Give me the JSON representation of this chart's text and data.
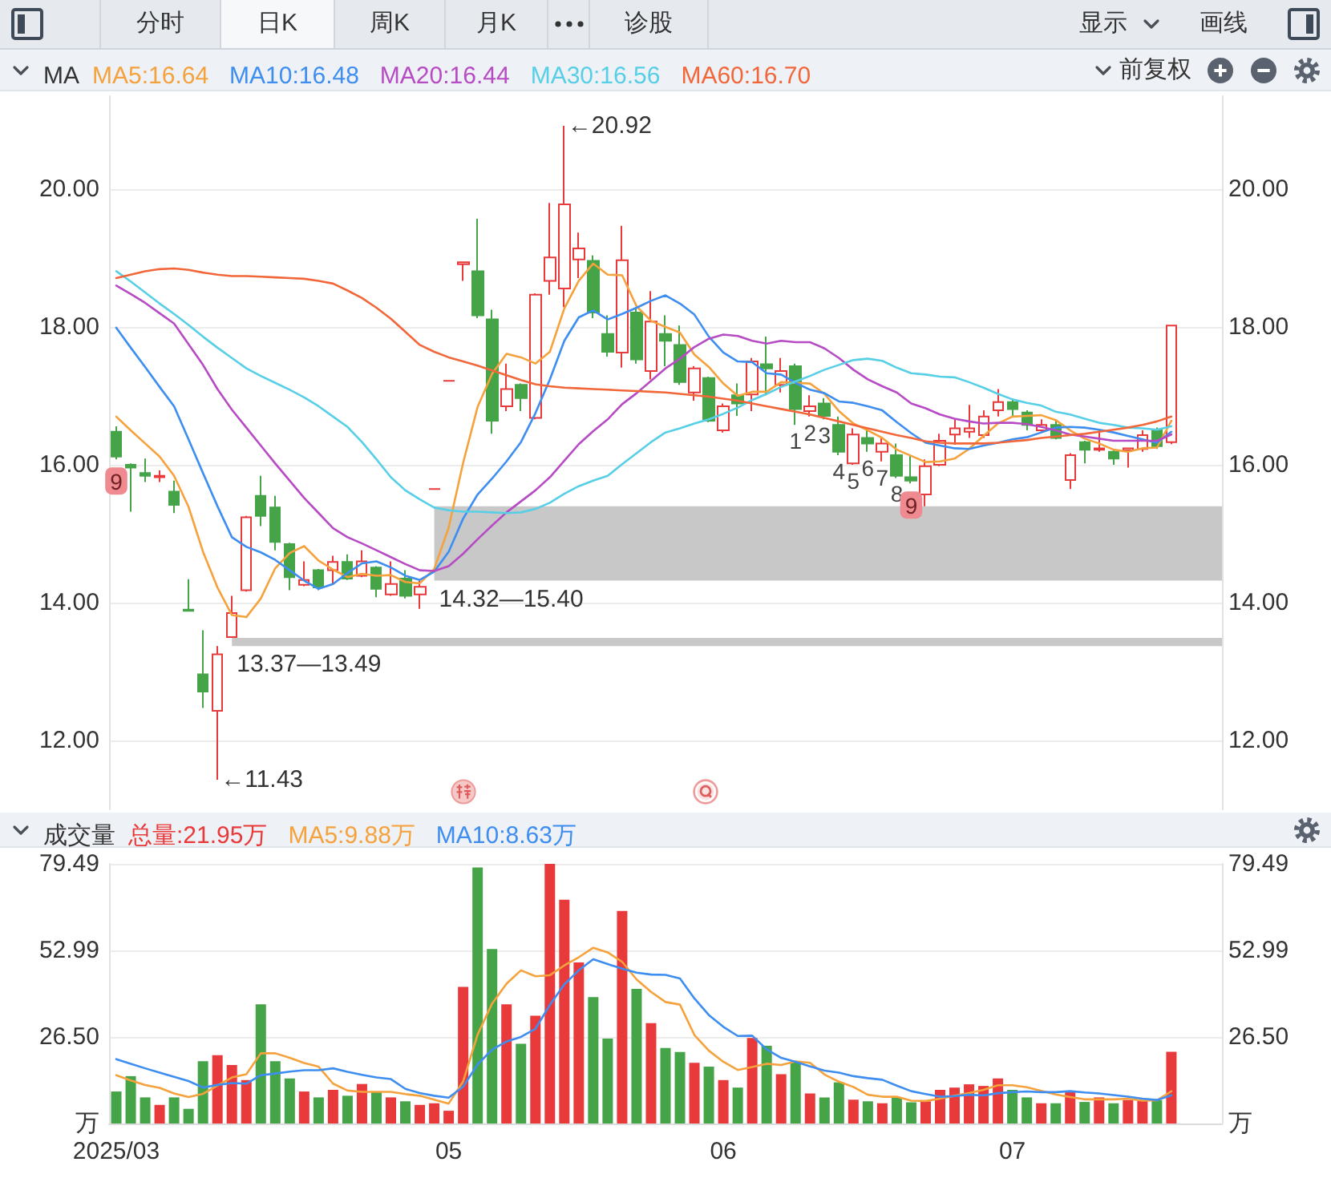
{
  "chart_data": [
    {
      "type": "other",
      "annotations": [
        "分时",
        "日K",
        "周K",
        "月K",
        "诊股",
        "显示",
        "画线"
      ]
    },
    {
      "type": "candlestick",
      "title": "MA",
      "legend": "top left",
      "grid": "y",
      "marker": "none",
      "tick_labels": "y",
      "categories": [
        "2025/03",
        null,
        null,
        null,
        null,
        null,
        null,
        null,
        null,
        null,
        null,
        null,
        null,
        null,
        null,
        null,
        null,
        null,
        null,
        null,
        null,
        null,
        null,
        "05",
        null,
        null,
        null,
        null,
        null,
        null,
        null,
        null,
        null,
        null,
        null,
        null,
        null,
        null,
        null,
        null,
        null,
        null,
        "06",
        null,
        null,
        null,
        null,
        null,
        null,
        null,
        null,
        null,
        null,
        null,
        null,
        null,
        null,
        null,
        null,
        null,
        null,
        null,
        "07",
        null,
        null,
        null,
        null,
        null,
        null,
        null,
        null,
        null,
        null,
        null
      ],
      "ylim": [
        11.0,
        21.35
      ],
      "yticks": [
        {
          "value": 12,
          "label": "12.00"
        },
        {
          "value": 14,
          "label": "14.00"
        },
        {
          "value": 16,
          "label": "16.00"
        },
        {
          "value": 18,
          "label": "18.00"
        },
        {
          "value": 20,
          "label": "20.00"
        }
      ],
      "y2lim": [
        11.0,
        21.35
      ],
      "y2ticks": [
        {
          "value": 12,
          "label": "12.00"
        },
        {
          "value": 14,
          "label": "14.00"
        },
        {
          "value": 16,
          "label": "16.00"
        },
        {
          "value": 18,
          "label": "18.00"
        },
        {
          "value": 20,
          "label": "20.00"
        }
      ],
      "series": [
        {
          "type": "candlestick",
          "ohlc": [
            [
              16.48,
              16.56,
              16.08,
              16.12
            ],
            [
              16.0,
              16.02,
              15.32,
              15.96
            ],
            [
              15.88,
              16.09,
              15.75,
              15.84
            ],
            [
              15.82,
              15.92,
              15.75,
              15.84
            ],
            [
              15.61,
              15.77,
              15.3,
              15.42
            ],
            [
              13.9,
              14.34,
              13.88,
              13.88
            ],
            [
              12.96,
              13.6,
              12.47,
              12.71
            ],
            [
              12.43,
              13.37,
              11.43,
              13.25
            ],
            [
              13.5,
              14.1,
              13.49,
              13.85
            ],
            [
              14.18,
              15.26,
              14.16,
              15.24
            ],
            [
              15.55,
              15.84,
              15.11,
              15.26
            ],
            [
              15.38,
              15.55,
              14.76,
              14.88
            ],
            [
              14.85,
              14.87,
              14.18,
              14.37
            ],
            [
              14.26,
              14.6,
              14.24,
              14.33
            ],
            [
              14.47,
              14.49,
              14.18,
              14.22
            ],
            [
              14.47,
              14.68,
              14.26,
              14.59
            ],
            [
              14.59,
              14.7,
              14.33,
              14.35
            ],
            [
              14.39,
              14.76,
              14.37,
              14.6
            ],
            [
              14.51,
              14.53,
              14.08,
              14.2
            ],
            [
              14.12,
              14.6,
              14.1,
              14.27
            ],
            [
              14.35,
              14.47,
              14.06,
              14.1
            ],
            [
              14.12,
              14.32,
              13.91,
              14.23
            ],
            [
              15.65,
              15.65,
              15.65,
              15.65
            ],
            [
              17.22,
              17.22,
              17.22,
              17.22
            ],
            [
              18.91,
              18.94,
              18.67,
              18.94
            ],
            [
              18.81,
              19.57,
              18.13,
              18.17
            ],
            [
              18.11,
              18.25,
              16.45,
              16.64
            ],
            [
              16.85,
              17.47,
              16.78,
              17.1
            ],
            [
              17.16,
              17.18,
              16.78,
              16.97
            ],
            [
              16.68,
              18.49,
              16.66,
              18.47
            ],
            [
              18.67,
              19.8,
              18.47,
              19.01
            ],
            [
              18.56,
              20.92,
              18.29,
              19.78
            ],
            [
              18.98,
              19.37,
              18.71,
              19.14
            ],
            [
              18.96,
              19.04,
              18.13,
              18.21
            ],
            [
              17.9,
              18.17,
              17.57,
              17.64
            ],
            [
              17.63,
              19.47,
              17.41,
              18.97
            ],
            [
              18.21,
              18.29,
              17.47,
              17.53
            ],
            [
              17.36,
              18.52,
              17.24,
              18.08
            ],
            [
              17.9,
              18.17,
              17.43,
              17.8
            ],
            [
              17.74,
              18.02,
              17.16,
              17.2
            ],
            [
              17.05,
              17.43,
              16.93,
              17.4
            ],
            [
              17.26,
              17.28,
              16.62,
              16.64
            ],
            [
              16.5,
              16.89,
              16.47,
              16.85
            ],
            [
              17.01,
              17.18,
              16.71,
              16.89
            ],
            [
              17.02,
              17.55,
              16.78,
              17.5
            ],
            [
              17.46,
              17.86,
              17.01,
              17.4
            ],
            [
              17.16,
              17.55,
              17.05,
              17.36
            ],
            [
              17.43,
              17.47,
              16.58,
              16.81
            ],
            [
              16.78,
              17.01,
              16.7,
              16.85
            ],
            [
              16.89,
              16.97,
              16.66,
              16.71
            ],
            [
              16.58,
              16.7,
              16.14,
              16.19
            ],
            [
              16.02,
              16.53,
              16.0,
              16.44
            ],
            [
              16.39,
              16.5,
              16.19,
              16.31
            ],
            [
              16.19,
              16.39,
              16.05,
              16.31
            ],
            [
              16.14,
              16.31,
              15.81,
              15.84
            ],
            [
              15.82,
              16.14,
              15.73,
              15.77
            ],
            [
              15.57,
              16.08,
              15.4,
              15.98
            ],
            [
              16.0,
              16.45,
              15.98,
              16.35
            ],
            [
              16.44,
              16.66,
              16.29,
              16.53
            ],
            [
              16.48,
              16.87,
              16.39,
              16.53
            ],
            [
              16.43,
              16.79,
              16.39,
              16.7
            ],
            [
              16.79,
              17.1,
              16.7,
              16.91
            ],
            [
              16.91,
              16.95,
              16.71,
              16.81
            ],
            [
              16.76,
              16.79,
              16.5,
              16.58
            ],
            [
              16.5,
              16.66,
              16.48,
              16.58
            ],
            [
              16.58,
              16.64,
              16.37,
              16.39
            ],
            [
              15.78,
              16.17,
              15.65,
              16.14
            ],
            [
              16.33,
              16.35,
              16.02,
              16.22
            ],
            [
              16.22,
              16.5,
              16.19,
              16.24
            ],
            [
              16.19,
              16.21,
              16.0,
              16.09
            ],
            [
              16.21,
              16.25,
              15.96,
              16.24
            ],
            [
              16.23,
              16.5,
              16.19,
              16.43
            ],
            [
              16.5,
              16.54,
              16.23,
              16.27
            ],
            [
              16.33,
              18.02,
              16.3,
              18.02
            ]
          ],
          "colors": [
            "#45a348",
            "#45a348",
            "#45a348",
            "#e8393b",
            "#45a348",
            "#45a348",
            "#45a348",
            "#e8393b",
            "#e8393b",
            "#e8393b",
            "#45a348",
            "#45a348",
            "#45a348",
            "#e8393b",
            "#45a348",
            "#e8393b",
            "#45a348",
            "#e8393b",
            "#45a348",
            "#e8393b",
            "#45a348",
            "#e8393b",
            "#e8393b",
            "#e8393b",
            "#e8393b",
            "#45a348",
            "#45a348",
            "#e8393b",
            "#45a348",
            "#e8393b",
            "#e8393b",
            "#e8393b",
            "#e8393b",
            "#45a348",
            "#45a348",
            "#e8393b",
            "#45a348",
            "#e8393b",
            "#45a348",
            "#45a348",
            "#e8393b",
            "#45a348",
            "#e8393b",
            "#45a348",
            "#e8393b",
            "#45a348",
            "#e8393b",
            "#45a348",
            "#e8393b",
            "#45a348",
            "#45a348",
            "#e8393b",
            "#45a348",
            "#e8393b",
            "#45a348",
            "#45a348",
            "#e8393b",
            "#e8393b",
            "#e8393b",
            "#e8393b",
            "#e8393b",
            "#e8393b",
            "#45a348",
            "#45a348",
            "#e8393b",
            "#45a348",
            "#e8393b",
            "#45a348",
            "#e8393b",
            "#45a348",
            "#e8393b",
            "#e8393b",
            "#45a348",
            "#e8393b"
          ],
          "value_labels": [
            "9",
            null,
            null,
            null,
            null,
            null,
            null,
            null,
            null,
            null,
            null,
            null,
            null,
            null,
            null,
            null,
            null,
            null,
            null,
            null,
            null,
            null,
            null,
            null,
            null,
            null,
            null,
            null,
            null,
            null,
            null,
            null,
            null,
            null,
            null,
            null,
            null,
            null,
            null,
            null,
            null,
            null,
            null,
            null,
            null,
            null,
            null,
            "1",
            "2",
            "3",
            "4",
            "5",
            "6",
            "7",
            "8",
            "9",
            null,
            null,
            null,
            null,
            null,
            null,
            null,
            null,
            null,
            null,
            null,
            null,
            null,
            null,
            null,
            null,
            null,
            null
          ]
        },
        {
          "type": "line",
          "name": "MA5:16.64",
          "color": "#f5a23d",
          "values": [
            16.7,
            16.5,
            16.31,
            16.12,
            15.84,
            15.39,
            14.74,
            14.22,
            13.82,
            13.79,
            14.06,
            14.5,
            14.72,
            14.82,
            14.61,
            14.48,
            14.37,
            14.42,
            14.39,
            14.4,
            14.3,
            14.28,
            14.49,
            15.09,
            16.03,
            16.84,
            17.32,
            17.61,
            17.56,
            17.47,
            17.64,
            18.27,
            18.67,
            18.92,
            18.76,
            18.75,
            18.3,
            18.09,
            18.0,
            17.92,
            17.6,
            17.42,
            17.18,
            17.0,
            17.06,
            17.06,
            17.2,
            17.19,
            17.18,
            17.03,
            16.78,
            16.6,
            16.5,
            16.39,
            16.22,
            16.13,
            16.04,
            16.05,
            16.09,
            16.23,
            16.42,
            16.6,
            16.7,
            16.71,
            16.72,
            16.65,
            16.5,
            16.38,
            16.31,
            16.22,
            16.19,
            16.24,
            16.25,
            16.64
          ]
        },
        {
          "type": "line",
          "name": "MA10:16.48",
          "color": "#3d8ef0",
          "values": [
            17.99,
            17.7,
            17.42,
            17.13,
            16.85,
            16.37,
            15.88,
            15.4,
            14.95,
            14.81,
            14.73,
            14.62,
            14.47,
            14.32,
            14.2,
            14.27,
            14.43,
            14.57,
            14.6,
            14.51,
            14.39,
            14.33,
            14.45,
            14.74,
            15.22,
            15.57,
            15.8,
            16.05,
            16.33,
            16.75,
            17.24,
            17.8,
            18.14,
            18.24,
            18.11,
            18.19,
            18.28,
            18.38,
            18.46,
            18.34,
            18.18,
            17.86,
            17.63,
            17.5,
            17.49,
            17.33,
            17.31,
            17.19,
            17.09,
            17.04,
            16.92,
            16.9,
            16.85,
            16.79,
            16.62,
            16.46,
            16.32,
            16.28,
            16.24,
            16.23,
            16.28,
            16.32,
            16.37,
            16.4,
            16.47,
            16.54,
            16.55,
            16.54,
            16.51,
            16.47,
            16.42,
            16.37,
            16.32,
            16.48
          ]
        },
        {
          "type": "line",
          "name": "MA20:16.44",
          "color": "#b64bc4",
          "values": [
            18.6,
            18.48,
            18.35,
            18.2,
            18.05,
            17.75,
            17.45,
            17.1,
            16.8,
            16.54,
            16.28,
            16.02,
            15.77,
            15.52,
            15.3,
            15.08,
            14.95,
            14.86,
            14.76,
            14.66,
            14.56,
            14.47,
            14.46,
            14.53,
            14.71,
            14.92,
            15.12,
            15.31,
            15.47,
            15.63,
            15.82,
            16.06,
            16.3,
            16.49,
            16.66,
            16.88,
            17.04,
            17.22,
            17.4,
            17.54,
            17.71,
            17.83,
            17.89,
            17.87,
            17.8,
            17.76,
            17.8,
            17.78,
            17.78,
            17.69,
            17.55,
            17.38,
            17.24,
            17.14,
            17.05,
            16.89,
            16.82,
            16.73,
            16.67,
            16.63,
            16.6,
            16.61,
            16.61,
            16.59,
            16.55,
            16.5,
            16.44,
            16.41,
            16.38,
            16.35,
            16.35,
            16.35,
            16.35,
            16.44
          ]
        },
        {
          "type": "line",
          "name": "MA30:16.56",
          "color": "#57cfe6",
          "values": [
            18.81,
            18.66,
            18.5,
            18.34,
            18.19,
            18.03,
            17.86,
            17.7,
            17.55,
            17.4,
            17.29,
            17.19,
            17.09,
            16.98,
            16.85,
            16.7,
            16.55,
            16.33,
            16.08,
            15.82,
            15.63,
            15.5,
            15.38,
            15.34,
            15.32,
            15.32,
            15.31,
            15.3,
            15.31,
            15.36,
            15.45,
            15.58,
            15.69,
            15.77,
            15.84,
            16.01,
            16.17,
            16.33,
            16.47,
            16.53,
            16.6,
            16.66,
            16.74,
            16.83,
            16.94,
            17.03,
            17.13,
            17.21,
            17.29,
            17.38,
            17.45,
            17.52,
            17.54,
            17.51,
            17.41,
            17.33,
            17.31,
            17.28,
            17.27,
            17.2,
            17.12,
            17.03,
            16.95,
            16.9,
            16.86,
            16.77,
            16.73,
            16.67,
            16.61,
            16.58,
            16.54,
            16.53,
            16.51,
            16.56
          ]
        },
        {
          "type": "line",
          "name": "MA60:16.70",
          "color": "#f2673a",
          "values": [
            18.71,
            18.76,
            18.81,
            18.84,
            18.85,
            18.83,
            18.79,
            18.76,
            18.74,
            18.74,
            18.73,
            18.72,
            18.71,
            18.7,
            18.67,
            18.63,
            18.53,
            18.42,
            18.28,
            18.12,
            17.93,
            17.74,
            17.64,
            17.56,
            17.5,
            17.44,
            17.37,
            17.3,
            17.23,
            17.17,
            17.14,
            17.12,
            17.11,
            17.1,
            17.09,
            17.08,
            17.07,
            17.06,
            17.05,
            17.03,
            17.01,
            16.99,
            16.96,
            16.93,
            16.89,
            16.85,
            16.81,
            16.77,
            16.73,
            16.68,
            16.63,
            16.58,
            16.53,
            16.48,
            16.43,
            16.39,
            16.34,
            16.32,
            16.31,
            16.31,
            16.31,
            16.32,
            16.34,
            16.36,
            16.39,
            16.41,
            16.43,
            16.45,
            16.48,
            16.51,
            16.54,
            16.58,
            16.63,
            16.7
          ]
        }
      ],
      "bands": [
        {
          "axis": "y",
          "from": 13.37,
          "to": 13.49,
          "label": "13.37—13.49",
          "color": "#c8c8c8"
        },
        {
          "axis": "y",
          "from": 14.32,
          "to": 15.4,
          "label": "14.32—15.40",
          "color": "#c8c8c8"
        }
      ],
      "annotations": [
        "前复权",
        "←20.92",
        "←11.43"
      ]
    },
    {
      "type": "bar",
      "title": "成交量",
      "legend": "top left",
      "grid": "y",
      "marker": "none",
      "categories": [
        "2025/03",
        null,
        null,
        null,
        null,
        null,
        null,
        null,
        null,
        null,
        null,
        null,
        null,
        null,
        null,
        null,
        null,
        null,
        null,
        null,
        null,
        null,
        null,
        "05",
        null,
        null,
        null,
        null,
        null,
        null,
        null,
        null,
        null,
        null,
        null,
        null,
        null,
        null,
        null,
        null,
        null,
        null,
        "06",
        null,
        null,
        null,
        null,
        null,
        null,
        null,
        null,
        null,
        null,
        null,
        null,
        null,
        null,
        null,
        null,
        null,
        null,
        null,
        "07",
        null,
        null,
        null,
        null,
        null,
        null,
        null,
        null,
        null,
        null,
        null
      ],
      "ylim": [
        0,
        79.49
      ],
      "yticks": [
        {
          "value": 0,
          "label": "万"
        },
        {
          "value": 26.5,
          "label": "26.50"
        },
        52.99,
        79.49
      ],
      "y2lim": [
        0,
        79.49
      ],
      "y2ticks": [
        {
          "value": 0,
          "label": "万"
        },
        {
          "value": 26.5,
          "label": "26.50"
        },
        52.99,
        79.49
      ],
      "series": [
        {
          "name": "总量:21.95万",
          "color": "#e8393b",
          "values": [
            9.8,
            14.5,
            8.0,
            5.7,
            8.0,
            4.5,
            19.1,
            20.9,
            17.9,
            13.3,
            36.5,
            19.1,
            13.8,
            9.8,
            8.0,
            10.3,
            8.5,
            12.1,
            9.8,
            8.0,
            6.8,
            5.7,
            6.2,
            3.9,
            41.8,
            78.4,
            53.4,
            36.5,
            24.4,
            33.0,
            79.49,
            68.5,
            49.3,
            38.7,
            26.0,
            65.1,
            41.2,
            30.7,
            23.1,
            21.9,
            18.6,
            17.4,
            13.3,
            11.0,
            26.2,
            23.8,
            15.1,
            18.9,
            9.2,
            8.0,
            12.6,
            7.3,
            6.8,
            6.2,
            8.0,
            6.5,
            6.8,
            10.3,
            11.0,
            12.0,
            11.5,
            13.8,
            10.3,
            8.0,
            6.2,
            6.2,
            9.8,
            6.6,
            8.0,
            6.2,
            7.2,
            7.0,
            7.2,
            21.95
          ],
          "colors": [
            "#45a348",
            "#45a348",
            "#45a348",
            "#e8393b",
            "#45a348",
            "#45a348",
            "#45a348",
            "#e8393b",
            "#e8393b",
            "#e8393b",
            "#45a348",
            "#45a348",
            "#45a348",
            "#e8393b",
            "#45a348",
            "#e8393b",
            "#45a348",
            "#e8393b",
            "#45a348",
            "#e8393b",
            "#45a348",
            "#e8393b",
            "#e8393b",
            "#e8393b",
            "#e8393b",
            "#45a348",
            "#45a348",
            "#e8393b",
            "#45a348",
            "#e8393b",
            "#e8393b",
            "#e8393b",
            "#e8393b",
            "#45a348",
            "#45a348",
            "#e8393b",
            "#45a348",
            "#e8393b",
            "#45a348",
            "#45a348",
            "#e8393b",
            "#45a348",
            "#e8393b",
            "#45a348",
            "#e8393b",
            "#45a348",
            "#e8393b",
            "#45a348",
            "#e8393b",
            "#45a348",
            "#45a348",
            "#e8393b",
            "#45a348",
            "#e8393b",
            "#45a348",
            "#45a348",
            "#e8393b",
            "#e8393b",
            "#e8393b",
            "#e8393b",
            "#e8393b",
            "#e8393b",
            "#45a348",
            "#45a348",
            "#e8393b",
            "#45a348",
            "#e8393b",
            "#45a348",
            "#e8393b",
            "#45a348",
            "#e8393b",
            "#e8393b",
            "#45a348",
            "#e8393b"
          ]
        },
        {
          "type": "line",
          "name": "MA5:9.88万",
          "color": "#f5a23d",
          "values": [
            14.8,
            13.2,
            11.8,
            10.9,
            9.2,
            8.1,
            9.1,
            11.6,
            14.1,
            15.1,
            21.5,
            21.5,
            20.1,
            18.5,
            17.4,
            12.2,
            10.1,
            9.7,
            9.7,
            9.7,
            9.0,
            8.5,
            7.3,
            6.1,
            12.9,
            27.2,
            36.7,
            42.8,
            46.9,
            45.1,
            45.4,
            48.4,
            50.9,
            53.8,
            52.4,
            49.5,
            44.1,
            40.3,
            37.2,
            36.4,
            27.1,
            22.3,
            18.9,
            16.4,
            17.3,
            18.3,
            17.9,
            19.0,
            18.6,
            15.0,
            12.8,
            11.2,
            8.8,
            8.2,
            8.2,
            7.0,
            6.9,
            7.6,
            8.5,
            9.3,
            10.3,
            11.7,
            11.7,
            11.1,
            10.0,
            8.9,
            8.1,
            7.4,
            7.4,
            7.4,
            7.6,
            7.0,
            7.1,
            9.88
          ]
        },
        {
          "type": "line",
          "name": "MA10:8.63万",
          "color": "#3d8ef0",
          "values": [
            19.7,
            18.3,
            16.9,
            15.6,
            14.3,
            13.0,
            11.0,
            11.8,
            12.4,
            12.2,
            14.8,
            15.3,
            15.9,
            16.3,
            16.3,
            16.9,
            15.8,
            14.9,
            14.1,
            13.6,
            10.6,
            9.3,
            8.5,
            7.9,
            11.3,
            18.1,
            22.6,
            25.1,
            26.5,
            29.0,
            36.3,
            42.6,
            46.9,
            50.3,
            48.8,
            47.4,
            46.2,
            45.6,
            45.5,
            44.4,
            38.3,
            33.2,
            29.6,
            26.8,
            26.9,
            22.7,
            20.1,
            18.9,
            17.5,
            16.2,
            15.6,
            14.5,
            13.9,
            13.4,
            11.6,
            9.9,
            9.0,
            8.2,
            8.4,
            8.8,
            8.6,
            9.3,
            9.6,
            9.8,
            9.6,
            9.6,
            9.9,
            9.5,
            9.2,
            8.7,
            8.2,
            7.6,
            7.2,
            8.63
          ]
        }
      ]
    }
  ]
}
